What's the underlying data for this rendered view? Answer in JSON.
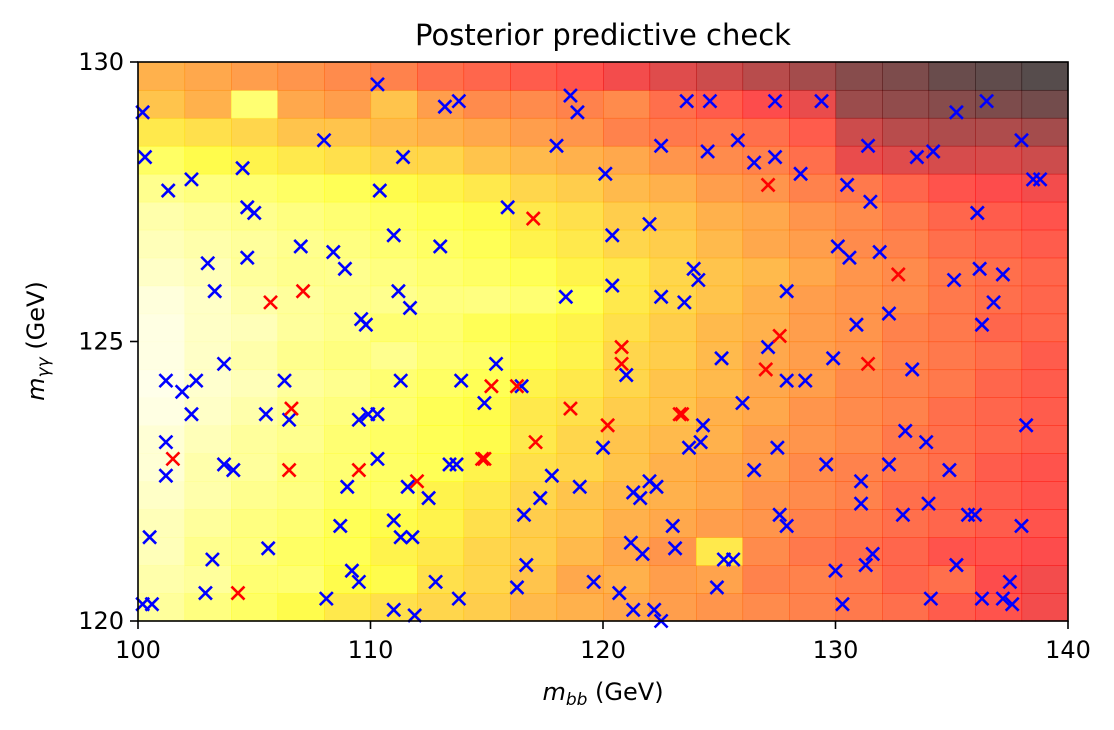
{
  "chart_data": {
    "type": "heatmap",
    "title": "Posterior predictive check",
    "xlabel": {
      "base": "m",
      "sub": "bb",
      "unit": " (GeV)"
    },
    "ylabel": {
      "base": "m",
      "sub": "γγ",
      "unit": " (GeV)"
    },
    "xlim": [
      100,
      140
    ],
    "ylim": [
      120,
      130
    ],
    "xticks": [
      "100",
      "110",
      "120",
      "130",
      "140"
    ],
    "yticks": [
      "120",
      "125",
      "130"
    ],
    "heatmap": {
      "colormap": "hot",
      "alpha": 0.7,
      "x_bins": 20,
      "y_bins": 20,
      "density_low_to_high_y": [
        [
          0.86,
          0.82,
          0.78,
          0.74,
          0.7,
          0.68,
          0.66,
          0.64,
          0.6,
          0.58,
          0.56,
          0.54,
          0.52,
          0.5,
          0.48,
          0.46,
          0.44,
          0.4,
          0.38,
          0.34
        ],
        [
          0.88,
          0.86,
          0.8,
          0.8,
          0.74,
          0.74,
          0.68,
          0.66,
          0.62,
          0.56,
          0.58,
          0.54,
          0.55,
          0.48,
          0.48,
          0.46,
          0.42,
          0.44,
          0.36,
          0.34
        ],
        [
          0.9,
          0.84,
          0.82,
          0.78,
          0.76,
          0.72,
          0.7,
          0.66,
          0.64,
          0.6,
          0.56,
          0.52,
          0.7,
          0.5,
          0.46,
          0.44,
          0.42,
          0.38,
          0.38,
          0.36
        ],
        [
          0.9,
          0.86,
          0.82,
          0.8,
          0.76,
          0.74,
          0.72,
          0.68,
          0.64,
          0.62,
          0.58,
          0.56,
          0.54,
          0.52,
          0.48,
          0.46,
          0.44,
          0.42,
          0.4,
          0.38
        ],
        [
          0.92,
          0.88,
          0.84,
          0.82,
          0.78,
          0.78,
          0.72,
          0.7,
          0.66,
          0.62,
          0.6,
          0.58,
          0.56,
          0.52,
          0.5,
          0.48,
          0.44,
          0.42,
          0.4,
          0.38
        ],
        [
          0.94,
          0.88,
          0.86,
          0.82,
          0.8,
          0.78,
          0.76,
          0.72,
          0.68,
          0.66,
          0.62,
          0.58,
          0.56,
          0.54,
          0.5,
          0.48,
          0.46,
          0.44,
          0.4,
          0.38
        ],
        [
          0.94,
          0.9,
          0.86,
          0.84,
          0.8,
          0.78,
          0.76,
          0.74,
          0.7,
          0.66,
          0.62,
          0.6,
          0.58,
          0.54,
          0.52,
          0.5,
          0.46,
          0.44,
          0.42,
          0.4
        ],
        [
          0.96,
          0.92,
          0.88,
          0.84,
          0.82,
          0.8,
          0.76,
          0.74,
          0.7,
          0.68,
          0.64,
          0.62,
          0.58,
          0.56,
          0.52,
          0.5,
          0.48,
          0.44,
          0.42,
          0.4
        ],
        [
          0.97,
          0.93,
          0.9,
          0.86,
          0.84,
          0.8,
          0.78,
          0.76,
          0.72,
          0.7,
          0.66,
          0.62,
          0.6,
          0.56,
          0.54,
          0.5,
          0.48,
          0.46,
          0.42,
          0.4
        ],
        [
          0.96,
          0.92,
          0.88,
          0.84,
          0.82,
          0.84,
          0.8,
          0.78,
          0.74,
          0.72,
          0.66,
          0.64,
          0.6,
          0.56,
          0.54,
          0.52,
          0.48,
          0.46,
          0.44,
          0.4
        ],
        [
          0.96,
          0.92,
          0.9,
          0.86,
          0.84,
          0.8,
          0.8,
          0.76,
          0.74,
          0.72,
          0.68,
          0.64,
          0.6,
          0.58,
          0.54,
          0.52,
          0.48,
          0.46,
          0.42,
          0.42
        ],
        [
          0.95,
          0.92,
          0.88,
          0.86,
          0.84,
          0.84,
          0.82,
          0.82,
          0.8,
          0.76,
          0.7,
          0.66,
          0.62,
          0.58,
          0.54,
          0.52,
          0.5,
          0.46,
          0.44,
          0.42
        ],
        [
          0.92,
          0.9,
          0.86,
          0.84,
          0.84,
          0.82,
          0.8,
          0.78,
          0.76,
          0.72,
          0.7,
          0.66,
          0.62,
          0.6,
          0.56,
          0.52,
          0.5,
          0.46,
          0.44,
          0.42
        ],
        [
          0.9,
          0.88,
          0.86,
          0.84,
          0.82,
          0.8,
          0.78,
          0.76,
          0.72,
          0.7,
          0.66,
          0.64,
          0.6,
          0.56,
          0.54,
          0.5,
          0.48,
          0.44,
          0.42,
          0.4
        ],
        [
          0.88,
          0.86,
          0.84,
          0.82,
          0.8,
          0.78,
          0.76,
          0.74,
          0.7,
          0.68,
          0.64,
          0.62,
          0.58,
          0.56,
          0.52,
          0.5,
          0.46,
          0.42,
          0.4,
          0.38
        ],
        [
          0.84,
          0.82,
          0.8,
          0.78,
          0.76,
          0.74,
          0.72,
          0.7,
          0.66,
          0.64,
          0.6,
          0.58,
          0.54,
          0.52,
          0.48,
          0.46,
          0.42,
          0.38,
          0.36,
          0.34
        ],
        [
          0.78,
          0.74,
          0.72,
          0.7,
          0.68,
          0.66,
          0.66,
          0.62,
          0.6,
          0.58,
          0.56,
          0.52,
          0.5,
          0.48,
          0.44,
          0.32,
          0.3,
          0.28,
          0.28,
          0.26
        ],
        [
          0.7,
          0.68,
          0.66,
          0.62,
          0.62,
          0.6,
          0.58,
          0.56,
          0.54,
          0.52,
          0.48,
          0.46,
          0.46,
          0.44,
          0.4,
          0.26,
          0.22,
          0.2,
          0.2,
          0.18
        ],
        [
          0.62,
          0.58,
          0.8,
          0.56,
          0.54,
          0.62,
          0.54,
          0.5,
          0.5,
          0.48,
          0.5,
          0.44,
          0.4,
          0.36,
          0.32,
          0.16,
          0.14,
          0.12,
          0.1,
          0.08
        ],
        [
          0.58,
          0.56,
          0.54,
          0.52,
          0.5,
          0.48,
          0.44,
          0.42,
          0.4,
          0.38,
          0.34,
          0.3,
          0.26,
          0.22,
          0.18,
          0.12,
          0.1,
          0.06,
          0.04,
          0.02
        ]
      ]
    },
    "series": [
      {
        "color": "#0000ff",
        "marker": "x",
        "points": [
          [
            100.2,
            129.1
          ],
          [
            100.3,
            128.3
          ],
          [
            101.3,
            127.7
          ],
          [
            102.3,
            127.9
          ],
          [
            104.5,
            128.1
          ],
          [
            104.7,
            127.4
          ],
          [
            105.0,
            127.3
          ],
          [
            103.0,
            126.4
          ],
          [
            103.3,
            125.9
          ],
          [
            104.7,
            126.5
          ],
          [
            101.2,
            124.3
          ],
          [
            101.9,
            124.1
          ],
          [
            102.3,
            123.7
          ],
          [
            102.5,
            124.3
          ],
          [
            103.7,
            124.6
          ],
          [
            101.2,
            123.2
          ],
          [
            101.2,
            122.6
          ],
          [
            100.5,
            121.5
          ],
          [
            100.2,
            120.3
          ],
          [
            100.6,
            120.3
          ],
          [
            102.9,
            120.5
          ],
          [
            103.2,
            121.1
          ],
          [
            103.7,
            122.8
          ],
          [
            104.1,
            122.7
          ],
          [
            105.5,
            123.7
          ],
          [
            105.6,
            121.3
          ],
          [
            106.3,
            124.3
          ],
          [
            106.5,
            123.6
          ],
          [
            107.0,
            126.7
          ],
          [
            108.0,
            128.6
          ],
          [
            108.4,
            126.6
          ],
          [
            108.9,
            126.3
          ],
          [
            109.6,
            125.4
          ],
          [
            109.8,
            125.3
          ],
          [
            109.5,
            123.6
          ],
          [
            109.9,
            123.7
          ],
          [
            110.3,
            123.7
          ],
          [
            108.7,
            121.7
          ],
          [
            109.0,
            122.4
          ],
          [
            109.2,
            120.9
          ],
          [
            109.5,
            120.7
          ],
          [
            108.1,
            120.4
          ],
          [
            110.3,
            122.9
          ],
          [
            110.3,
            129.6
          ],
          [
            110.4,
            127.7
          ],
          [
            111.0,
            126.9
          ],
          [
            111.2,
            125.9
          ],
          [
            111.4,
            128.3
          ],
          [
            111.7,
            125.6
          ],
          [
            111.3,
            124.3
          ],
          [
            111.0,
            121.8
          ],
          [
            111.3,
            121.5
          ],
          [
            111.6,
            122.4
          ],
          [
            111.8,
            121.5
          ],
          [
            111.0,
            120.2
          ],
          [
            111.9,
            120.1
          ],
          [
            112.5,
            122.2
          ],
          [
            113.0,
            126.7
          ],
          [
            113.2,
            129.2
          ],
          [
            113.8,
            129.3
          ],
          [
            113.9,
            124.3
          ],
          [
            113.4,
            122.8
          ],
          [
            113.7,
            122.8
          ],
          [
            112.8,
            120.7
          ],
          [
            113.8,
            120.4
          ],
          [
            114.9,
            123.9
          ],
          [
            115.4,
            124.6
          ],
          [
            115.9,
            127.4
          ],
          [
            116.5,
            124.2
          ],
          [
            116.6,
            121.9
          ],
          [
            116.7,
            121.0
          ],
          [
            116.3,
            120.6
          ],
          [
            117.3,
            122.2
          ],
          [
            117.8,
            122.6
          ],
          [
            118.0,
            128.5
          ],
          [
            118.4,
            125.8
          ],
          [
            118.6,
            129.4
          ],
          [
            118.9,
            129.1
          ],
          [
            119.0,
            122.4
          ],
          [
            119.6,
            120.7
          ],
          [
            120.0,
            123.1
          ],
          [
            120.1,
            128.0
          ],
          [
            120.4,
            126.0
          ],
          [
            120.4,
            126.9
          ],
          [
            121.0,
            124.4
          ],
          [
            120.7,
            120.5
          ],
          [
            121.2,
            121.4
          ],
          [
            121.3,
            122.3
          ],
          [
            121.7,
            121.2
          ],
          [
            121.3,
            120.2
          ],
          [
            121.6,
            122.2
          ],
          [
            122.0,
            122.5
          ],
          [
            122.2,
            120.2
          ],
          [
            122.5,
            120.0
          ],
          [
            122.0,
            127.1
          ],
          [
            122.5,
            128.5
          ],
          [
            122.5,
            125.8
          ],
          [
            122.3,
            122.4
          ],
          [
            123.0,
            121.7
          ],
          [
            123.1,
            121.3
          ],
          [
            123.5,
            125.7
          ],
          [
            123.6,
            129.3
          ],
          [
            123.9,
            126.3
          ],
          [
            124.1,
            126.1
          ],
          [
            123.7,
            123.1
          ],
          [
            124.2,
            123.2
          ],
          [
            124.3,
            123.5
          ],
          [
            124.6,
            129.3
          ],
          [
            124.5,
            128.4
          ],
          [
            125.1,
            124.7
          ],
          [
            124.9,
            120.6
          ],
          [
            125.2,
            121.1
          ],
          [
            125.6,
            121.1
          ],
          [
            125.8,
            128.6
          ],
          [
            126.0,
            123.9
          ],
          [
            126.5,
            122.7
          ],
          [
            126.5,
            128.2
          ],
          [
            127.1,
            124.9
          ],
          [
            127.4,
            129.3
          ],
          [
            127.4,
            128.3
          ],
          [
            127.6,
            121.9
          ],
          [
            127.5,
            123.1
          ],
          [
            127.9,
            124.3
          ],
          [
            127.9,
            125.9
          ],
          [
            127.9,
            121.7
          ],
          [
            128.5,
            128.0
          ],
          [
            128.7,
            124.3
          ],
          [
            129.4,
            129.3
          ],
          [
            129.6,
            122.8
          ],
          [
            129.9,
            124.7
          ],
          [
            130.1,
            126.7
          ],
          [
            130.0,
            120.9
          ],
          [
            130.3,
            120.3
          ],
          [
            130.5,
            127.8
          ],
          [
            130.6,
            126.5
          ],
          [
            130.9,
            125.3
          ],
          [
            131.1,
            122.1
          ],
          [
            131.1,
            122.5
          ],
          [
            131.3,
            121.0
          ],
          [
            131.6,
            121.2
          ],
          [
            131.4,
            128.5
          ],
          [
            131.5,
            127.5
          ],
          [
            131.9,
            126.6
          ],
          [
            132.3,
            125.5
          ],
          [
            132.3,
            122.8
          ],
          [
            132.9,
            121.9
          ],
          [
            133.0,
            123.4
          ],
          [
            133.3,
            124.5
          ],
          [
            133.5,
            128.3
          ],
          [
            133.9,
            123.2
          ],
          [
            134.2,
            128.4
          ],
          [
            134.0,
            122.1
          ],
          [
            134.1,
            120.4
          ],
          [
            134.9,
            122.7
          ],
          [
            135.2,
            121.0
          ],
          [
            135.1,
            126.1
          ],
          [
            135.2,
            129.1
          ],
          [
            135.7,
            121.9
          ],
          [
            136.0,
            121.9
          ],
          [
            136.1,
            127.3
          ],
          [
            136.2,
            126.3
          ],
          [
            136.3,
            125.3
          ],
          [
            136.5,
            129.3
          ],
          [
            136.8,
            125.7
          ],
          [
            136.3,
            120.4
          ],
          [
            137.2,
            120.4
          ],
          [
            137.2,
            126.2
          ],
          [
            137.5,
            120.7
          ],
          [
            137.6,
            120.3
          ],
          [
            138.0,
            128.6
          ],
          [
            138.0,
            121.7
          ],
          [
            138.2,
            123.5
          ],
          [
            138.5,
            127.9
          ],
          [
            138.8,
            127.9
          ]
        ]
      },
      {
        "color": "#ff0000",
        "marker": "x",
        "points": [
          [
            101.5,
            122.9
          ],
          [
            104.3,
            120.5
          ],
          [
            105.7,
            125.7
          ],
          [
            106.6,
            123.8
          ],
          [
            106.5,
            122.7
          ],
          [
            107.1,
            125.9
          ],
          [
            109.5,
            122.7
          ],
          [
            112.0,
            122.5
          ],
          [
            114.8,
            122.9
          ],
          [
            114.9,
            122.9
          ],
          [
            115.2,
            124.2
          ],
          [
            116.3,
            124.2
          ],
          [
            117.0,
            127.2
          ],
          [
            117.1,
            123.2
          ],
          [
            118.6,
            123.8
          ],
          [
            120.2,
            123.5
          ],
          [
            120.8,
            124.9
          ],
          [
            120.8,
            124.6
          ],
          [
            123.3,
            123.7
          ],
          [
            123.4,
            123.7
          ],
          [
            127.0,
            124.5
          ],
          [
            127.1,
            127.8
          ],
          [
            127.6,
            125.1
          ],
          [
            131.4,
            124.6
          ],
          [
            132.7,
            126.2
          ]
        ]
      }
    ]
  }
}
